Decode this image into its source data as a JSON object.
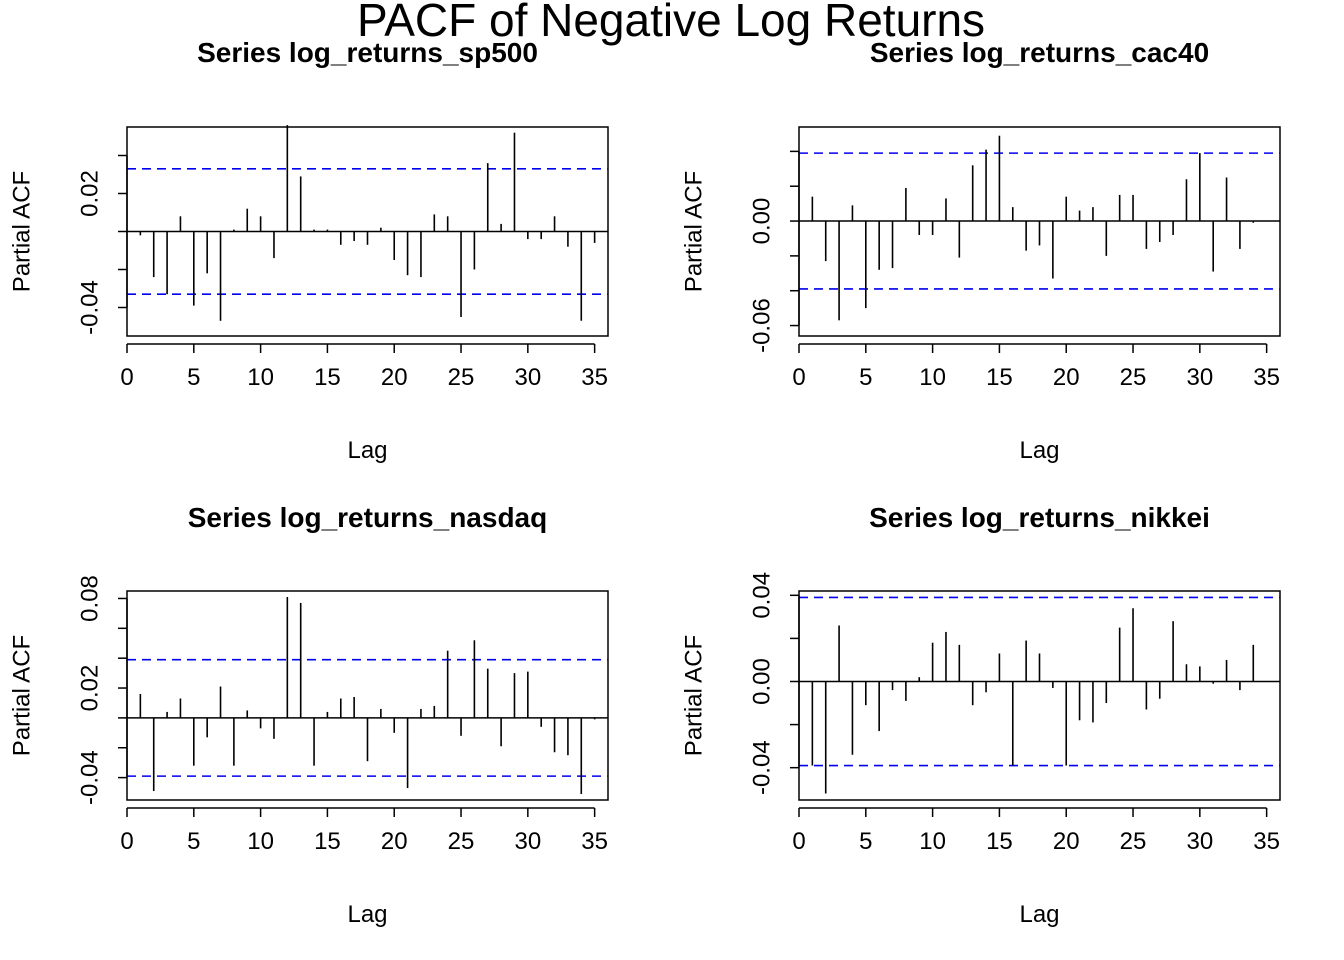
{
  "main_title": "PACF of Negative Log Returns",
  "chart_data": [
    {
      "type": "bar",
      "title": "Series  log_returns_sp500",
      "xlabel": "Lag",
      "ylabel": "Partial ACF",
      "xlim": [
        0,
        36
      ],
      "ylim": [
        -0.055,
        0.055
      ],
      "x_ticks": [
        0,
        5,
        10,
        15,
        20,
        25,
        30,
        35
      ],
      "y_ticks": [
        -0.06,
        -0.04,
        -0.02,
        0.0,
        0.02,
        0.04
      ],
      "y_tick_labels": [
        {
          "value": -0.04,
          "label": "-0.04"
        },
        {
          "value": 0.02,
          "label": "0.02"
        }
      ],
      "ci": 0.033,
      "lags": [
        1,
        2,
        3,
        4,
        5,
        6,
        7,
        8,
        9,
        10,
        11,
        12,
        13,
        14,
        15,
        16,
        17,
        18,
        19,
        20,
        21,
        22,
        23,
        24,
        25,
        26,
        27,
        28,
        29,
        30,
        31,
        32,
        33,
        34,
        35
      ],
      "values": [
        -0.002,
        -0.024,
        -0.033,
        0.008,
        -0.039,
        -0.022,
        -0.047,
        0.001,
        0.012,
        0.008,
        -0.014,
        0.056,
        0.029,
        0.001,
        0.001,
        -0.007,
        -0.005,
        -0.007,
        0.002,
        -0.015,
        -0.023,
        -0.024,
        0.009,
        0.008,
        -0.045,
        -0.02,
        0.036,
        0.004,
        0.052,
        -0.004,
        -0.004,
        0.008,
        -0.008,
        -0.047,
        -0.006
      ]
    },
    {
      "type": "bar",
      "title": "Series  log_returns_cac40",
      "xlabel": "Lag",
      "ylabel": "Partial ACF",
      "xlim": [
        0,
        36
      ],
      "ylim": [
        -0.066,
        0.054
      ],
      "x_ticks": [
        0,
        5,
        10,
        15,
        20,
        25,
        30,
        35
      ],
      "y_ticks": [
        -0.06,
        -0.04,
        -0.02,
        0.0,
        0.02,
        0.04
      ],
      "y_tick_labels": [
        {
          "value": -0.06,
          "label": "-0.06"
        },
        {
          "value": 0.0,
          "label": "0.00"
        }
      ],
      "ci": 0.039,
      "lags": [
        1,
        2,
        3,
        4,
        5,
        6,
        7,
        8,
        9,
        10,
        11,
        12,
        13,
        14,
        15,
        16,
        17,
        18,
        19,
        20,
        21,
        22,
        23,
        24,
        25,
        26,
        27,
        28,
        29,
        30,
        31,
        32,
        33,
        34,
        35
      ],
      "values": [
        0.014,
        -0.023,
        -0.057,
        0.009,
        -0.05,
        -0.028,
        -0.027,
        0.019,
        -0.008,
        -0.008,
        0.013,
        -0.021,
        0.032,
        0.041,
        0.049,
        0.008,
        -0.017,
        -0.014,
        -0.033,
        0.014,
        0.006,
        0.008,
        -0.02,
        0.015,
        0.015,
        -0.016,
        -0.012,
        -0.008,
        0.024,
        0.039,
        -0.029,
        0.025,
        -0.016,
        -0.001,
        0.0
      ]
    },
    {
      "type": "bar",
      "title": "Series  log_returns_nasdaq",
      "xlabel": "Lag",
      "ylabel": "Partial ACF",
      "xlim": [
        0,
        36
      ],
      "ylim": [
        -0.055,
        0.085
      ],
      "x_ticks": [
        0,
        5,
        10,
        15,
        20,
        25,
        30,
        35
      ],
      "y_ticks": [
        -0.04,
        -0.02,
        0.0,
        0.02,
        0.04,
        0.06,
        0.08
      ],
      "y_tick_labels": [
        {
          "value": -0.04,
          "label": "-0.04"
        },
        {
          "value": 0.02,
          "label": "0.02"
        },
        {
          "value": 0.08,
          "label": "0.08"
        }
      ],
      "ci": 0.039,
      "lags": [
        1,
        2,
        3,
        4,
        5,
        6,
        7,
        8,
        9,
        10,
        11,
        12,
        13,
        14,
        15,
        16,
        17,
        18,
        19,
        20,
        21,
        22,
        23,
        24,
        25,
        26,
        27,
        28,
        29,
        30,
        31,
        32,
        33,
        34,
        35
      ],
      "values": [
        0.016,
        -0.049,
        0.004,
        0.013,
        -0.032,
        -0.013,
        0.021,
        -0.032,
        0.005,
        -0.007,
        -0.014,
        0.081,
        0.077,
        -0.032,
        0.004,
        0.013,
        0.014,
        -0.029,
        0.006,
        -0.01,
        -0.047,
        0.006,
        0.008,
        0.045,
        -0.012,
        0.052,
        0.033,
        -0.019,
        0.03,
        0.031,
        -0.006,
        -0.023,
        -0.025,
        -0.051,
        -0.001
      ]
    },
    {
      "type": "bar",
      "title": "Series  log_returns_nikkei",
      "xlabel": "Lag",
      "ylabel": "Partial ACF",
      "xlim": [
        0,
        36
      ],
      "ylim": [
        -0.055,
        0.042
      ],
      "x_ticks": [
        0,
        5,
        10,
        15,
        20,
        25,
        30,
        35
      ],
      "y_ticks": [
        -0.04,
        -0.02,
        0.0,
        0.02,
        0.04
      ],
      "y_tick_labels": [
        {
          "value": -0.04,
          "label": "-0.04"
        },
        {
          "value": 0.0,
          "label": "0.00"
        },
        {
          "value": 0.04,
          "label": "0.04"
        }
      ],
      "ci": 0.039,
      "lags": [
        1,
        2,
        3,
        4,
        5,
        6,
        7,
        8,
        9,
        10,
        11,
        12,
        13,
        14,
        15,
        16,
        17,
        18,
        19,
        20,
        21,
        22,
        23,
        24,
        25,
        26,
        27,
        28,
        29,
        30,
        31,
        32,
        33,
        34,
        35
      ],
      "values": [
        -0.039,
        -0.052,
        0.026,
        -0.034,
        -0.011,
        -0.023,
        -0.004,
        -0.009,
        0.002,
        0.018,
        0.023,
        0.017,
        -0.011,
        -0.005,
        0.013,
        -0.039,
        0.019,
        0.013,
        -0.003,
        -0.039,
        -0.018,
        -0.019,
        -0.01,
        0.025,
        0.034,
        -0.013,
        -0.008,
        0.028,
        0.008,
        0.007,
        -0.001,
        0.01,
        -0.004,
        0.017,
        0.0
      ]
    }
  ]
}
